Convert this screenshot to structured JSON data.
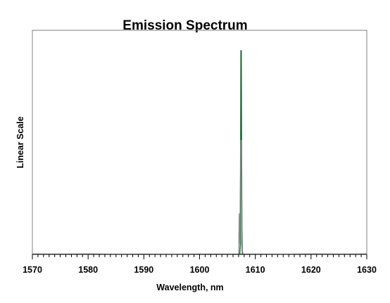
{
  "chart_data": {
    "type": "line",
    "title": "Emission Spectrum",
    "xlabel": "Wavelength, nm",
    "ylabel": "Linear Scale",
    "xlim": [
      1570,
      1630
    ],
    "ylim": [
      0,
      1.1
    ],
    "x_ticks": [
      1570,
      1580,
      1590,
      1600,
      1610,
      1620,
      1630
    ],
    "x_minor_step": 1,
    "grid": false,
    "colors": {
      "series_1": "#1e6b3c",
      "series_2": "#8a8a8a"
    },
    "series": [
      {
        "values": [
          [
            1607.2,
            0
          ],
          [
            1607.3,
            0.05
          ],
          [
            1607.38,
            0.6
          ],
          [
            1607.42,
            1.0
          ],
          [
            1607.48,
            1.0
          ],
          [
            1607.52,
            0.6
          ],
          [
            1607.6,
            0.05
          ],
          [
            1607.7,
            0
          ]
        ]
      },
      {
        "values": [
          [
            1607.0,
            0
          ],
          [
            1607.1,
            0.2
          ],
          [
            1607.2,
            0.05
          ],
          [
            1607.3,
            0.3
          ],
          [
            1607.4,
            0.56
          ],
          [
            1607.5,
            0.56
          ],
          [
            1607.6,
            0.2
          ],
          [
            1607.7,
            0.02
          ],
          [
            1607.8,
            0
          ]
        ]
      },
      {
        "values": [
          [
            1570,
            0.003
          ],
          [
            1575,
            0.002
          ],
          [
            1580,
            0.003
          ],
          [
            1585,
            0.001
          ],
          [
            1590,
            0.002
          ],
          [
            1595,
            0.001
          ],
          [
            1600,
            0.002
          ],
          [
            1605,
            0.002
          ],
          [
            1610,
            0.002
          ],
          [
            1615,
            0.001
          ],
          [
            1620,
            0.003
          ],
          [
            1625,
            0.002
          ],
          [
            1630,
            0.003
          ]
        ]
      }
    ]
  }
}
